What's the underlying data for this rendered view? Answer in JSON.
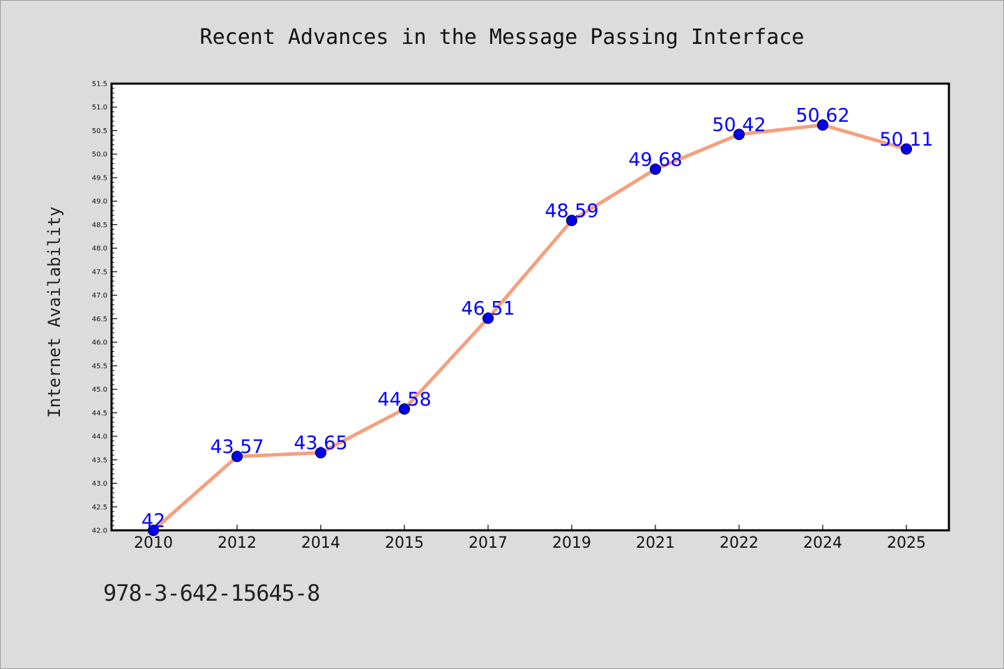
{
  "footer_text": "978-3-642-15645-8",
  "chart_data": {
    "type": "line",
    "title": "Recent Advances in the Message Passing Interface",
    "xlabel": "",
    "ylabel": "Internet Availability",
    "categories": [
      "2010",
      "2012",
      "2014",
      "2015",
      "2017",
      "2019",
      "2021",
      "2022",
      "2024",
      "2025"
    ],
    "series": [
      {
        "values": [
          42,
          43.57,
          43.65,
          44.58,
          46.51,
          48.59,
          49.68,
          50.42,
          50.62,
          50.11
        ],
        "labels": [
          "42",
          "43.57",
          "43.65",
          "44.58",
          "46.51",
          "48.59",
          "49.68",
          "50.42",
          "50.62",
          "50.11"
        ]
      }
    ],
    "ylim": [
      42.0,
      51.5
    ],
    "yticks": [
      "42.0",
      "42.5",
      "43.0",
      "43.5",
      "44.0",
      "44.5",
      "45.0",
      "45.5",
      "46.0",
      "46.5",
      "47.0",
      "47.5",
      "48.0",
      "48.5",
      "49.0",
      "49.5",
      "50.0",
      "50.5",
      "51.0",
      "51.5"
    ],
    "grid": false,
    "legend": "none",
    "colors": {
      "line": "#f4a07e",
      "marker": "#0000ee",
      "label": "#0000ff",
      "axis": "#000000",
      "plot_background": "#ffffff",
      "figure_background": "#dcdcdc"
    }
  }
}
